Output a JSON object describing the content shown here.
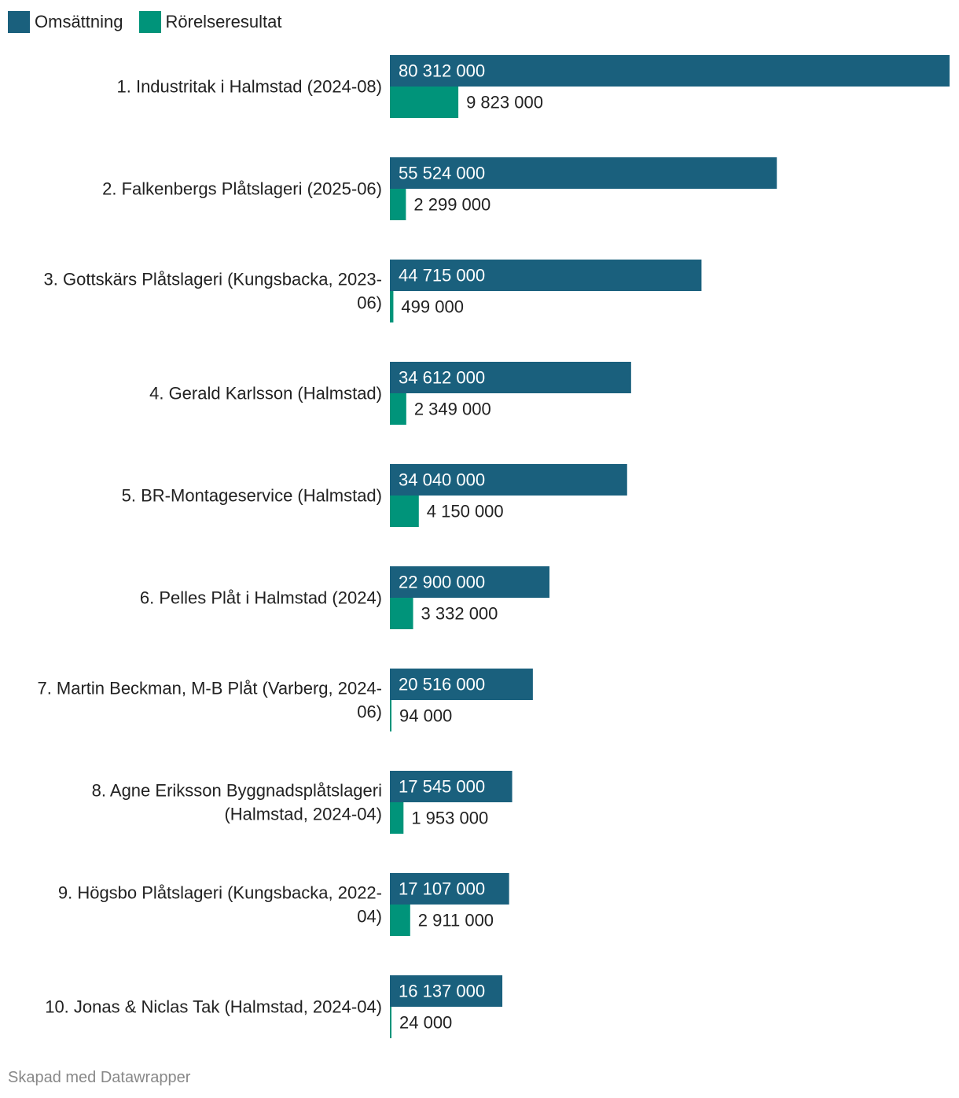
{
  "legend": [
    {
      "label": "Omsättning",
      "color": "#1a607d"
    },
    {
      "label": "Rörelseresultat",
      "color": "#00947a"
    }
  ],
  "footer": "Skapad med Datawrapper",
  "chart_data": {
    "type": "bar",
    "orientation": "horizontal",
    "title": "",
    "categories": [
      [
        "1. Industritak i Halmstad (2024-08)"
      ],
      [
        "2. Falkenbergs Plåtslageri (2025-06)"
      ],
      [
        "3. Gottskärs Plåtslageri (Kungsbacka, 2023-",
        "06)"
      ],
      [
        "4. Gerald Karlsson (Halmstad)"
      ],
      [
        "5. BR-Montageservice (Halmstad)"
      ],
      [
        "6. Pelles Plåt i Halmstad (2024)"
      ],
      [
        "7. Martin Beckman, M-B Plåt (Varberg, 2024-",
        "06)"
      ],
      [
        "8. Agne Eriksson Byggnadsplåtslageri",
        "(Halmstad, 2024-04)"
      ],
      [
        "9. Högsbo Plåtslageri (Kungsbacka, 2022-",
        "04)"
      ],
      [
        "10. Jonas & Niclas Tak (Halmstad, 2024-04)"
      ]
    ],
    "series": [
      {
        "name": "Omsättning",
        "color": "#1a607d",
        "values": [
          80312000,
          55524000,
          44715000,
          34612000,
          34040000,
          22900000,
          20516000,
          17545000,
          17107000,
          16137000
        ],
        "labels": [
          "80 312 000",
          "55 524 000",
          "44 715 000",
          "34 612 000",
          "34 040 000",
          "22 900 000",
          "20 516 000",
          "17 545 000",
          "17 107 000",
          "16 137 000"
        ]
      },
      {
        "name": "Rörelseresultat",
        "color": "#00947a",
        "values": [
          9823000,
          2299000,
          499000,
          2349000,
          4150000,
          3332000,
          94000,
          1953000,
          2911000,
          24000
        ],
        "labels": [
          "9 823 000",
          "2 299 000",
          "499 000",
          "2 349 000",
          "4 150 000",
          "3 332 000",
          "94 000",
          "1 953 000",
          "2 911 000",
          "24 000"
        ]
      }
    ],
    "xlim": [
      0,
      80312000
    ]
  }
}
